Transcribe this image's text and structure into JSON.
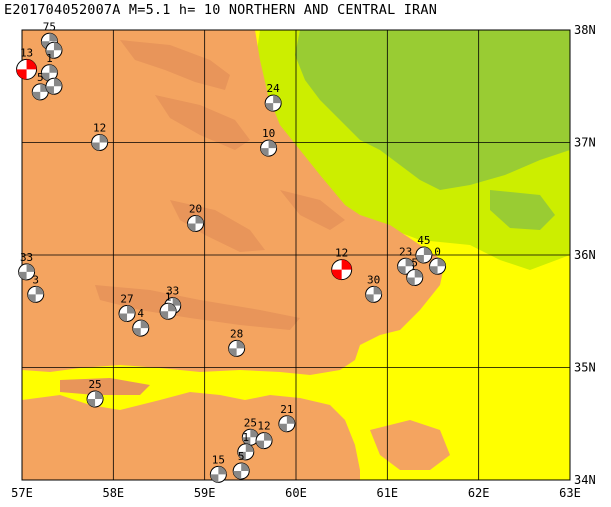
{
  "title": "E20170405200​7A M=5.1 h= 10 NORTHERN AND CENTRAL IRAN",
  "map": {
    "lon_range": [
      57,
      63
    ],
    "lat_range": [
      34,
      38
    ],
    "x_ticks": [
      "57E",
      "58E",
      "59E",
      "60E",
      "61E",
      "62E",
      "63E"
    ],
    "y_ticks": [
      "38N",
      "37N",
      "36N",
      "35N",
      "34N"
    ],
    "colors": {
      "lowland": "#ffff00",
      "plain": "#ccee00",
      "hill": "#99cc33",
      "upland": "#f4a460",
      "mountain": "#e8955a"
    }
  },
  "main_event": {
    "label": "12",
    "lon": 60.5,
    "lat": 35.87,
    "color": "#ff0000"
  },
  "northwest_event": {
    "label": "13",
    "lon": 57.05,
    "lat": 37.65,
    "color": "#ff0000"
  },
  "events": [
    {
      "label": "75",
      "lon": 57.3,
      "lat": 37.9
    },
    {
      "label": "",
      "lon": 57.35,
      "lat": 37.82
    },
    {
      "label": "1",
      "lon": 57.3,
      "lat": 37.62
    },
    {
      "label": "5",
      "lon": 57.2,
      "lat": 37.45
    },
    {
      "label": "",
      "lon": 57.35,
      "lat": 37.5
    },
    {
      "label": "12",
      "lon": 57.85,
      "lat": 37.0
    },
    {
      "label": "24",
      "lon": 59.75,
      "lat": 37.35
    },
    {
      "label": "10",
      "lon": 59.7,
      "lat": 36.95
    },
    {
      "label": "20",
      "lon": 58.9,
      "lat": 36.28
    },
    {
      "label": "45",
      "lon": 61.4,
      "lat": 36.0
    },
    {
      "label": "23",
      "lon": 61.2,
      "lat": 35.9
    },
    {
      "label": "5",
      "lon": 61.3,
      "lat": 35.8
    },
    {
      "label": "0",
      "lon": 61.55,
      "lat": 35.9
    },
    {
      "label": "30",
      "lon": 60.85,
      "lat": 35.65
    },
    {
      "label": "33",
      "lon": 57.05,
      "lat": 35.85
    },
    {
      "label": "3",
      "lon": 57.15,
      "lat": 35.65
    },
    {
      "label": "27",
      "lon": 58.15,
      "lat": 35.48
    },
    {
      "label": "4",
      "lon": 58.3,
      "lat": 35.35
    },
    {
      "label": "33",
      "lon": 58.65,
      "lat": 35.55
    },
    {
      "label": "1",
      "lon": 58.6,
      "lat": 35.5
    },
    {
      "label": "28",
      "lon": 59.35,
      "lat": 35.17
    },
    {
      "label": "25",
      "lon": 57.8,
      "lat": 34.72
    },
    {
      "label": "21",
      "lon": 59.9,
      "lat": 34.5
    },
    {
      "label": "25",
      "lon": 59.5,
      "lat": 34.38
    },
    {
      "label": "12",
      "lon": 59.65,
      "lat": 34.35
    },
    {
      "label": "1",
      "lon": 59.45,
      "lat": 34.25
    },
    {
      "label": "15",
      "lon": 59.15,
      "lat": 34.05
    },
    {
      "label": "5",
      "lon": 59.4,
      "lat": 34.08
    }
  ]
}
